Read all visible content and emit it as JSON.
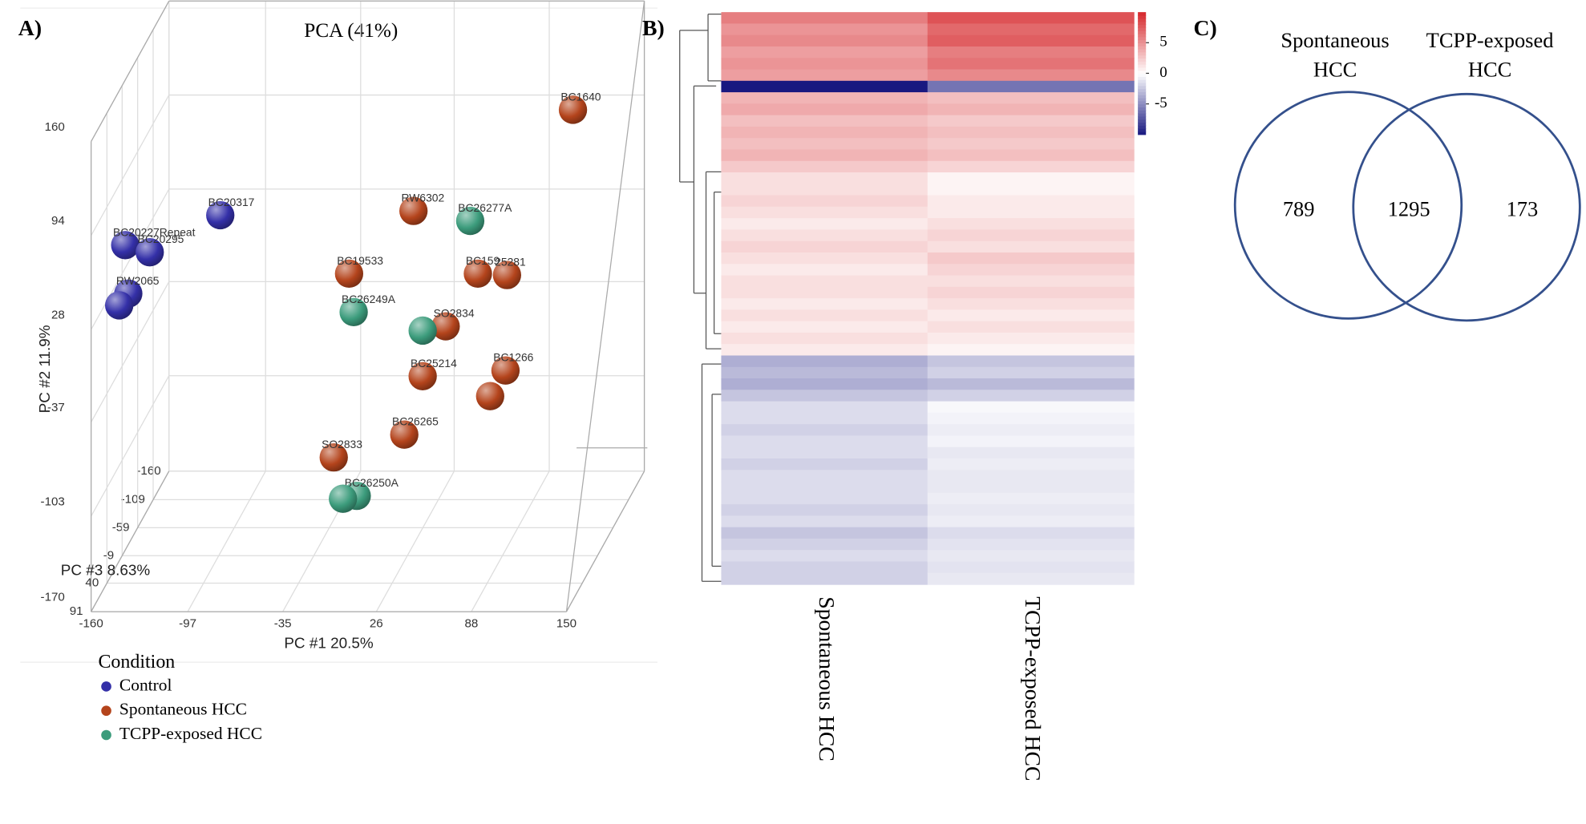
{
  "chart_data": [
    {
      "type": "scatter3d",
      "panel_label": "A)",
      "title": "PCA (41%)",
      "x_label": "PC #1 20.5%",
      "y_label": "PC #2 11.9%",
      "z_label": "PC #3 8.63%",
      "xlim": [
        -160,
        150
      ],
      "ylim": [
        -170,
        160
      ],
      "zlim": [
        -160,
        91
      ],
      "xticks": [
        -160,
        -97,
        -35,
        26,
        88,
        150
      ],
      "yticks": [
        -170,
        -103,
        -37,
        28,
        94,
        160
      ],
      "zticks": [
        -160,
        -109,
        -59,
        -9,
        40,
        91
      ],
      "legend_title": "Condition",
      "series": [
        {
          "name": "Control",
          "color": "#3430a8",
          "labels": [
            "BC20317",
            "BC20227Repeat",
            "BC20295",
            "RW2065",
            null
          ],
          "x": [
            -96,
            -158,
            -142,
            -156,
            -152
          ],
          "y": [
            69,
            48,
            43,
            14,
            25
          ],
          "z": [
            -9,
            -9,
            -9,
            -9,
            40
          ]
        },
        {
          "name": "Spontaneous HCC",
          "color": "#b4441c",
          "labels": [
            "BC1640",
            "RW6302",
            "BC19533",
            "BC159",
            "25281",
            "SO2834",
            "BC25214",
            "BC1266",
            null,
            "BC26265",
            "SO2833"
          ],
          "x": [
            134,
            30,
            -12,
            72,
            91,
            51,
            36,
            90,
            80,
            24,
            -22
          ],
          "y": [
            143,
            72,
            28,
            28,
            27,
            -9,
            -44,
            -40,
            -58,
            -85,
            -101
          ],
          "z": [
            -9,
            -9,
            -9,
            -9,
            -9,
            -9,
            -9,
            -9,
            -9,
            -9,
            -9
          ]
        },
        {
          "name": "TCPP-exposed HCC",
          "color": "#3c9c7c",
          "labels": [
            "BC26277A",
            "BC26249A",
            null,
            "BC26250A",
            null
          ],
          "x": [
            67,
            -9,
            36,
            -7,
            -16
          ],
          "y": [
            65,
            1,
            -12,
            -128,
            -130
          ],
          "z": [
            -9,
            -9,
            -9,
            -9,
            -9
          ]
        }
      ]
    },
    {
      "type": "heatmap",
      "panel_label": "B)",
      "clim": [
        -10,
        10
      ],
      "colorbar_ticks": [
        -5,
        0,
        5
      ],
      "series": [
        {
          "name": "Spontaneous HCC",
          "values": [
            6,
            5,
            5.5,
            4.5,
            5,
            4.5,
            -10,
            3.5,
            4,
            3,
            3.5,
            3,
            3.5,
            2.5,
            1.5,
            1.5,
            2,
            1.5,
            1,
            1.5,
            2,
            1.5,
            1,
            1.5,
            1.5,
            1,
            1.5,
            1,
            1.5,
            1,
            -3.5,
            -3,
            -3.5,
            -2.5,
            -1.5,
            -1.5,
            -2,
            -1.5,
            -1.5,
            -2,
            -1.5,
            -1.5,
            -1.5,
            -2,
            -1.5,
            -2.5,
            -2,
            -1.5,
            -2,
            -2
          ]
        },
        {
          "name": "TCPP-exposed HCC",
          "values": [
            8,
            7,
            7.5,
            6,
            6.5,
            5.5,
            -6,
            3,
            3.5,
            2.5,
            3,
            2.5,
            3,
            2,
            0.5,
            0.5,
            1,
            1,
            1.5,
            2,
            1.5,
            2.5,
            2,
            1.5,
            2,
            1.5,
            1,
            1.5,
            1,
            0.5,
            -2.5,
            -2,
            -3,
            -2,
            -0.3,
            -0.5,
            -0.8,
            -0.5,
            -1,
            -0.8,
            -1,
            -1,
            -0.8,
            -1,
            -0.8,
            -1.5,
            -1.2,
            -1,
            -1.2,
            -1
          ]
        }
      ]
    },
    {
      "type": "venn",
      "panel_label": "C)",
      "sets": [
        {
          "name_lines": [
            "Spontaneous",
            "HCC"
          ],
          "count": 789
        },
        {
          "name_lines": [
            "TCPP-exposed",
            "HCC"
          ],
          "count": 173
        }
      ],
      "intersection": 1295,
      "color": "#34508c"
    }
  ]
}
